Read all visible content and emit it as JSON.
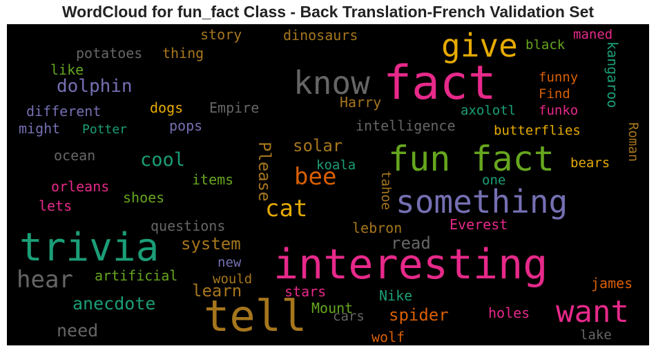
{
  "chart_data": {
    "type": "wordcloud",
    "title": "WordCloud for fun_fact Class - Back Translation-French Validation Set",
    "background": "#000000",
    "palette": [
      "#e7298a",
      "#a6761d",
      "#1b9e77",
      "#666666",
      "#7570b3",
      "#d95f02",
      "#e6ab02",
      "#66a61e"
    ],
    "words": [
      {
        "text": "interesting",
        "weight": 100,
        "color": "#e7298a"
      },
      {
        "text": "fact",
        "weight": 96,
        "color": "#e7298a"
      },
      {
        "text": "tell",
        "weight": 90,
        "color": "#a6761d"
      },
      {
        "text": "trivia",
        "weight": 78,
        "color": "#1b9e77"
      },
      {
        "text": "fun fact",
        "weight": 70,
        "color": "#66a61e"
      },
      {
        "text": "something",
        "weight": 62,
        "color": "#7570b3"
      },
      {
        "text": "know",
        "weight": 62,
        "color": "#666666"
      },
      {
        "text": "give",
        "weight": 62,
        "color": "#e6ab02"
      },
      {
        "text": "want",
        "weight": 56,
        "color": "#e7298a"
      },
      {
        "text": "hear",
        "weight": 44,
        "color": "#666666"
      },
      {
        "text": "cat",
        "weight": 42,
        "color": "#e6ab02"
      },
      {
        "text": "bee",
        "weight": 40,
        "color": "#d95f02"
      },
      {
        "text": "Please",
        "weight": 32,
        "color": "#a6761d"
      },
      {
        "text": "dolphin",
        "weight": 32,
        "color": "#7570b3"
      },
      {
        "text": "cool",
        "weight": 32,
        "color": "#1b9e77"
      },
      {
        "text": "anecdote",
        "weight": 30,
        "color": "#1b9e77"
      },
      {
        "text": "need",
        "weight": 30,
        "color": "#666666"
      },
      {
        "text": "system",
        "weight": 29,
        "color": "#a6761d"
      },
      {
        "text": "learn",
        "weight": 29,
        "color": "#a6761d"
      },
      {
        "text": "spider",
        "weight": 29,
        "color": "#d95f02"
      },
      {
        "text": "read",
        "weight": 28,
        "color": "#666666"
      },
      {
        "text": "solar",
        "weight": 28,
        "color": "#a6761d"
      },
      {
        "text": "kangaroo",
        "weight": 22,
        "color": "#1b9e77"
      },
      {
        "text": "Roman",
        "weight": 20,
        "color": "#a6761d"
      },
      {
        "text": "different",
        "weight": 20,
        "color": "#7570b3"
      },
      {
        "text": "might",
        "weight": 20,
        "color": "#7570b3"
      },
      {
        "text": "Potter",
        "weight": 20,
        "color": "#1b9e77"
      },
      {
        "text": "potatoes",
        "weight": 20,
        "color": "#666666"
      },
      {
        "text": "thing",
        "weight": 20,
        "color": "#a6761d"
      },
      {
        "text": "story",
        "weight": 20,
        "color": "#a6761d"
      },
      {
        "text": "dinosaurs",
        "weight": 20,
        "color": "#a6761d"
      },
      {
        "text": "like",
        "weight": 20,
        "color": "#66a61e"
      },
      {
        "text": "dogs",
        "weight": 20,
        "color": "#e6ab02"
      },
      {
        "text": "Empire",
        "weight": 20,
        "color": "#666666"
      },
      {
        "text": "pops",
        "weight": 20,
        "color": "#7570b3"
      },
      {
        "text": "intelligence",
        "weight": 20,
        "color": "#666666"
      },
      {
        "text": "Harry",
        "weight": 20,
        "color": "#a6761d"
      },
      {
        "text": "ocean",
        "weight": 20,
        "color": "#666666"
      },
      {
        "text": "orleans",
        "weight": 20,
        "color": "#e7298a"
      },
      {
        "text": "lets",
        "weight": 20,
        "color": "#e7298a"
      },
      {
        "text": "items",
        "weight": 20,
        "color": "#66a61e"
      },
      {
        "text": "shoes",
        "weight": 20,
        "color": "#66a61e"
      },
      {
        "text": "koala",
        "weight": 20,
        "color": "#1b9e77"
      },
      {
        "text": "tahoe",
        "weight": 20,
        "color": "#a6761d"
      },
      {
        "text": "questions",
        "weight": 20,
        "color": "#666666"
      },
      {
        "text": "lebron",
        "weight": 20,
        "color": "#a6761d"
      },
      {
        "text": "Everest",
        "weight": 20,
        "color": "#e7298a"
      },
      {
        "text": "one",
        "weight": 20,
        "color": "#1b9e77"
      },
      {
        "text": "new",
        "weight": 20,
        "color": "#7570b3"
      },
      {
        "text": "would",
        "weight": 20,
        "color": "#a6761d"
      },
      {
        "text": "artificial",
        "weight": 20,
        "color": "#66a61e"
      },
      {
        "text": "stars",
        "weight": 20,
        "color": "#e7298a"
      },
      {
        "text": "Mount",
        "weight": 20,
        "color": "#66a61e"
      },
      {
        "text": "Nike",
        "weight": 20,
        "color": "#1b9e77"
      },
      {
        "text": "cars",
        "weight": 20,
        "color": "#666666"
      },
      {
        "text": "wolf",
        "weight": 20,
        "color": "#d95f02"
      },
      {
        "text": "holes",
        "weight": 20,
        "color": "#e7298a"
      },
      {
        "text": "lake",
        "weight": 20,
        "color": "#666666"
      },
      {
        "text": "james",
        "weight": 20,
        "color": "#d95f02"
      },
      {
        "text": "bears",
        "weight": 20,
        "color": "#e6ab02"
      },
      {
        "text": "butterflies",
        "weight": 20,
        "color": "#e6ab02"
      },
      {
        "text": "axolotl",
        "weight": 20,
        "color": "#1b9e77"
      },
      {
        "text": "funko",
        "weight": 20,
        "color": "#e7298a"
      },
      {
        "text": "Find",
        "weight": 20,
        "color": "#d95f02"
      },
      {
        "text": "funny",
        "weight": 20,
        "color": "#d95f02"
      },
      {
        "text": "black",
        "weight": 20,
        "color": "#66a61e"
      },
      {
        "text": "maned",
        "weight": 20,
        "color": "#e7298a"
      }
    ]
  }
}
